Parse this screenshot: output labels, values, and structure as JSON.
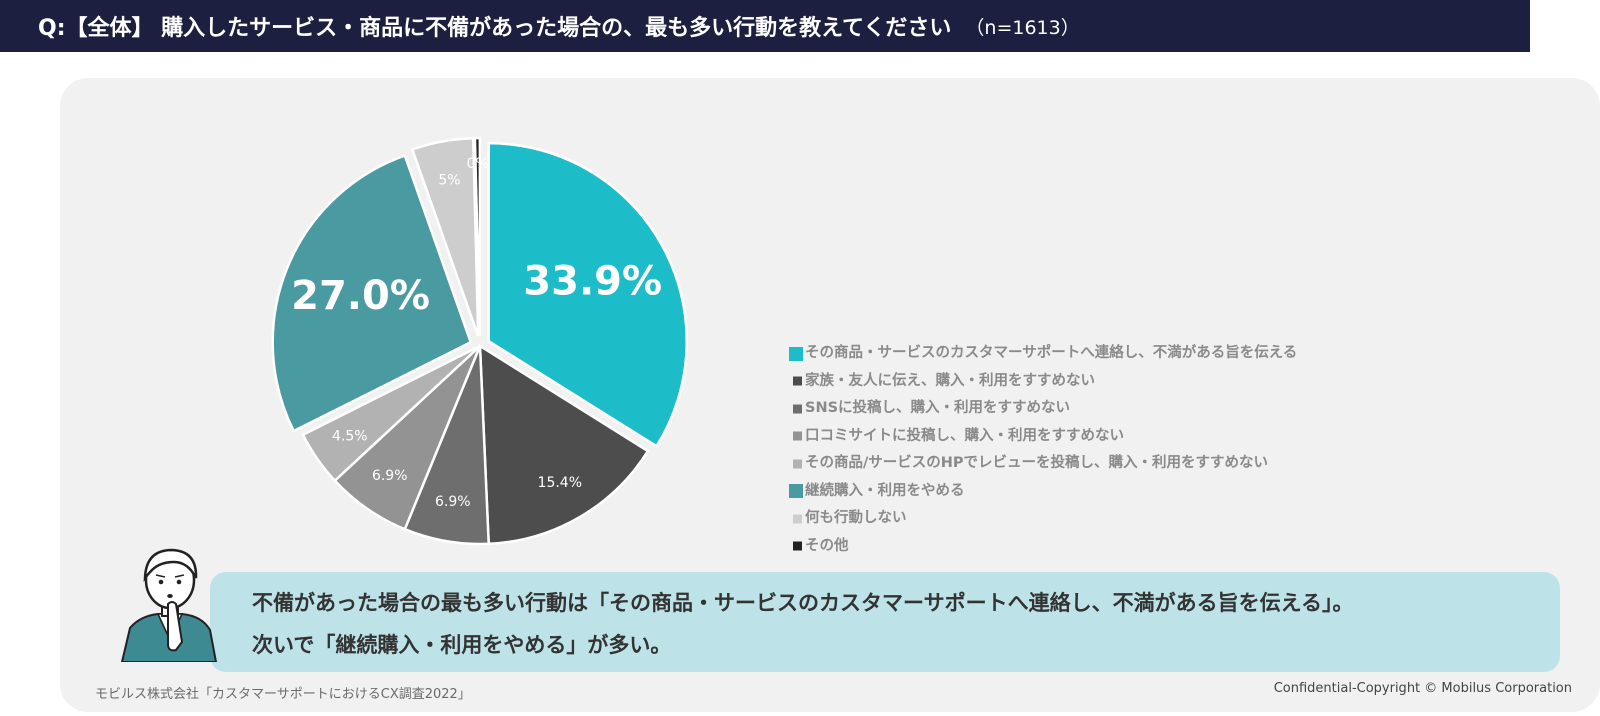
{
  "header": {
    "question": "Q:【全体】 購入したサービス・商品に不備があった場合の、最も多い行動を教えてください",
    "sample": "（n=1613）"
  },
  "chart_data": {
    "type": "pie",
    "title": "",
    "slices": [
      {
        "label": "その商品・サービスのカスタマーサポートへ連絡し、不満がある旨を伝える",
        "value": 33.9,
        "display": "33.9%",
        "color": "#1cbdc8",
        "label_color": "#ffffff",
        "exploded": true,
        "big": true
      },
      {
        "label": "家族・友人に伝え、購入・利用をすすめない",
        "value": 15.4,
        "display": "15.4%",
        "color": "#4d4d4d",
        "label_color": "#ffffff",
        "exploded": false,
        "big": false
      },
      {
        "label": "SNSに投稿し、購入・利用をすすめない",
        "value": 6.9,
        "display": "6.9%",
        "color": "#6e6e6e",
        "label_color": "#ffffff",
        "exploded": false,
        "big": false
      },
      {
        "label": "口コミサイトに投稿し、購入・利用をすすめない",
        "value": 6.9,
        "display": "6.9%",
        "color": "#939393",
        "label_color": "#ffffff",
        "exploded": false,
        "big": false
      },
      {
        "label": "その商品/サービスのHPでレビューを投稿し、購入・利用をすすめない",
        "value": 4.5,
        "display": "4.5%",
        "color": "#b2b2b2",
        "label_color": "#ffffff",
        "exploded": false,
        "big": false
      },
      {
        "label": "継続購入・利用をやめる",
        "value": 27.0,
        "display": "27.0%",
        "color": "#4a9aa2",
        "label_color": "#ffffff",
        "exploded": true,
        "big": true
      },
      {
        "label": "何も行動しない",
        "value": 5.0,
        "display": "5%",
        "color": "#cdcdcd",
        "label_color": "#ffffff",
        "exploded": true,
        "big": false
      },
      {
        "label": "その他",
        "value": 0.4,
        "display": "0%",
        "color": "#222222",
        "label_color": "#ffffff",
        "exploded": true,
        "big": false
      }
    ],
    "legend_position": "right"
  },
  "callout": {
    "line1": "不備があった場合の最も多い行動は「その商品・サービスのカスタマーサポートへ連絡し、不満がある旨を伝える」。",
    "line2": "次いで「継続購入・利用をやめる」が多い。"
  },
  "footer": {
    "source": "モビルス株式会社「カスタマーサポートにおけるCX調査2022」",
    "copyright": "Confidential-Copyright © Mobilus Corporation"
  }
}
